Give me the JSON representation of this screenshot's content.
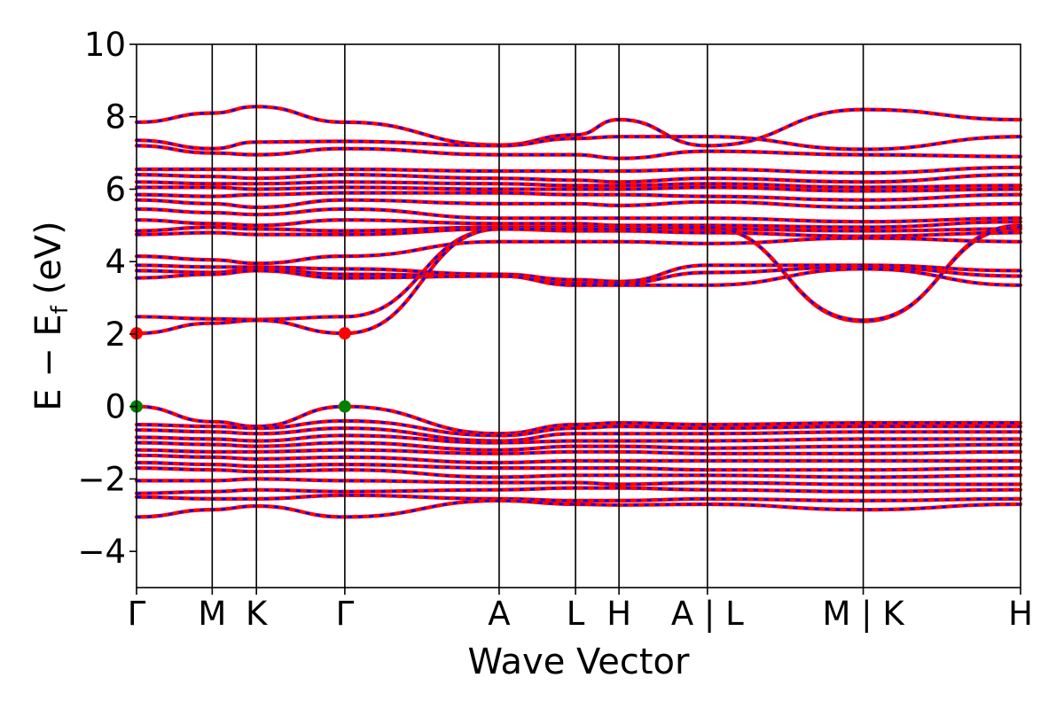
{
  "chart_data": {
    "type": "line",
    "xlabel": "Wave Vector",
    "ylabel": "E − E",
    "ylabel_sub": "f",
    "ylabel_unit": " (eV)",
    "ylim": [
      -5,
      10
    ],
    "yticks": [
      -4,
      -2,
      0,
      2,
      4,
      6,
      8,
      10
    ],
    "ytick_labels": [
      "−4",
      "−2",
      "0",
      "2",
      "4",
      "6",
      "8",
      "10"
    ],
    "xlim": [
      0,
      11.8
    ],
    "kpoints": [
      {
        "x": 0.0,
        "label": "Γ"
      },
      {
        "x": 1.01,
        "label": "M"
      },
      {
        "x": 1.6,
        "label": "K"
      },
      {
        "x": 2.78,
        "label": "Γ"
      },
      {
        "x": 4.84,
        "label": "A"
      },
      {
        "x": 5.86,
        "label": "L"
      },
      {
        "x": 6.44,
        "label": "H"
      },
      {
        "x": 7.62,
        "label": "A | L"
      },
      {
        "x": 9.7,
        "label": "M | K"
      },
      {
        "x": 11.8,
        "label": "H"
      }
    ],
    "band_colors": {
      "up": "#ff0000",
      "down": "#0000ff"
    },
    "marker_colors": {
      "cbm": "#ff0000",
      "vbm": "#008000"
    },
    "markers": [
      {
        "type": "cbm",
        "x": 0.0,
        "y": 2.02
      },
      {
        "type": "cbm",
        "x": 2.78,
        "y": 2.02
      },
      {
        "type": "vbm",
        "x": 0.0,
        "y": 0.0
      },
      {
        "type": "vbm",
        "x": 2.78,
        "y": 0.0
      }
    ],
    "band_sections_x": [
      0.0,
      1.01,
      1.6,
      2.78,
      4.84,
      5.86,
      6.44,
      7.62,
      9.7,
      11.8
    ],
    "bands": [
      [
        7.85,
        8.1,
        8.28,
        7.85,
        7.22,
        7.5,
        7.92,
        7.2,
        8.2,
        7.92
      ],
      [
        7.35,
        7.12,
        7.3,
        7.32,
        7.2,
        7.4,
        7.45,
        7.45,
        7.1,
        7.45
      ],
      [
        7.2,
        7.0,
        6.95,
        7.12,
        6.95,
        6.95,
        6.85,
        7.05,
        6.95,
        6.9
      ],
      [
        6.55,
        6.55,
        6.55,
        6.55,
        6.5,
        6.5,
        6.5,
        6.55,
        6.45,
        6.6
      ],
      [
        6.4,
        6.35,
        6.3,
        6.4,
        6.3,
        6.25,
        6.2,
        6.3,
        6.2,
        6.4
      ],
      [
        6.2,
        6.15,
        6.15,
        6.2,
        6.15,
        6.1,
        6.1,
        6.15,
        6.05,
        6.1
      ],
      [
        6.05,
        6.05,
        6.0,
        6.05,
        6.0,
        6.0,
        6.0,
        6.05,
        5.95,
        6.0
      ],
      [
        5.85,
        5.8,
        5.85,
        5.9,
        5.9,
        5.85,
        5.85,
        5.8,
        5.7,
        5.85
      ],
      [
        5.7,
        5.6,
        5.5,
        5.7,
        5.6,
        5.6,
        5.55,
        5.65,
        5.5,
        5.6
      ],
      [
        5.45,
        5.35,
        5.3,
        5.45,
        5.2,
        5.2,
        5.2,
        5.2,
        5.1,
        5.2
      ],
      [
        5.15,
        5.05,
        5.0,
        5.15,
        5.05,
        5.05,
        5.0,
        5.0,
        4.95,
        5.1
      ],
      [
        4.85,
        4.95,
        4.9,
        4.85,
        4.95,
        4.95,
        4.95,
        4.9,
        4.85,
        4.9
      ],
      [
        4.75,
        4.8,
        4.75,
        4.75,
        4.9,
        4.85,
        4.85,
        4.8,
        4.7,
        4.8
      ],
      [
        4.15,
        4.05,
        3.95,
        4.15,
        4.55,
        4.55,
        4.55,
        4.5,
        4.65,
        4.55
      ],
      [
        3.9,
        3.85,
        3.85,
        3.8,
        3.65,
        3.5,
        3.45,
        3.9,
        3.9,
        3.75
      ],
      [
        3.75,
        3.7,
        3.8,
        3.65,
        3.6,
        3.4,
        3.4,
        3.7,
        3.85,
        3.6
      ],
      [
        3.55,
        3.65,
        3.75,
        3.55,
        3.6,
        3.35,
        3.35,
        3.35,
        3.8,
        3.35
      ],
      [
        2.48,
        2.42,
        2.4,
        2.48,
        4.9,
        4.9,
        4.9,
        4.95,
        2.35,
        5.0
      ],
      [
        2.02,
        2.3,
        2.38,
        2.02,
        4.9,
        4.9,
        4.9,
        4.95,
        2.38,
        4.95
      ],
      [
        0.0,
        -0.42,
        -0.55,
        0.0,
        -0.75,
        -0.5,
        -0.45,
        -0.5,
        -0.45,
        -0.45
      ],
      [
        -0.5,
        -0.55,
        -0.6,
        -0.4,
        -0.8,
        -0.6,
        -0.55,
        -0.6,
        -0.55,
        -0.55
      ],
      [
        -0.65,
        -0.7,
        -0.75,
        -0.6,
        -0.95,
        -0.75,
        -0.75,
        -0.75,
        -0.7,
        -0.7
      ],
      [
        -0.85,
        -0.9,
        -0.95,
        -0.8,
        -1.0,
        -0.95,
        -0.95,
        -0.95,
        -0.9,
        -0.9
      ],
      [
        -1.0,
        -1.05,
        -1.1,
        -1.0,
        -1.2,
        -1.1,
        -1.1,
        -1.15,
        -1.1,
        -1.05
      ],
      [
        -1.2,
        -1.25,
        -1.25,
        -1.2,
        -1.3,
        -1.25,
        -1.25,
        -1.3,
        -1.3,
        -1.25
      ],
      [
        -1.35,
        -1.4,
        -1.45,
        -1.4,
        -1.55,
        -1.5,
        -1.5,
        -1.5,
        -1.5,
        -1.5
      ],
      [
        -1.55,
        -1.6,
        -1.65,
        -1.6,
        -1.7,
        -1.7,
        -1.7,
        -1.75,
        -1.75,
        -1.7
      ],
      [
        -1.7,
        -1.75,
        -1.8,
        -1.75,
        -1.95,
        -1.9,
        -1.9,
        -1.9,
        -1.95,
        -1.9
      ],
      [
        -2.05,
        -2.05,
        -2.0,
        -2.05,
        -2.1,
        -2.1,
        -2.15,
        -2.1,
        -2.15,
        -2.15
      ],
      [
        -2.4,
        -2.35,
        -2.3,
        -2.35,
        -2.3,
        -2.25,
        -2.25,
        -2.3,
        -2.35,
        -2.3
      ],
      [
        -2.5,
        -2.55,
        -2.55,
        -2.45,
        -2.55,
        -2.6,
        -2.6,
        -2.55,
        -2.6,
        -2.55
      ],
      [
        -3.05,
        -2.85,
        -2.75,
        -3.05,
        -2.6,
        -2.7,
        -2.72,
        -2.7,
        -2.85,
        -2.7
      ]
    ]
  }
}
